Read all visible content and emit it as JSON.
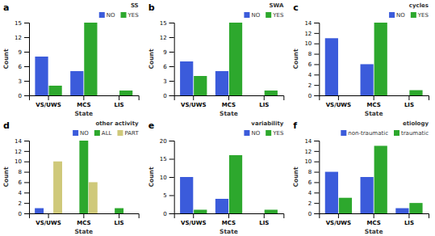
{
  "chart_data": [
    {
      "type": "bar",
      "title": "SS",
      "annotations": [
        "a"
      ],
      "xlabel": "State",
      "ylabel": "Count",
      "categories": [
        "VS/UWS",
        "MCS",
        "LIS"
      ],
      "series": [
        {
          "name": "NO",
          "color": "#3b5bdb",
          "values": [
            8,
            5,
            0
          ]
        },
        {
          "name": "YES",
          "color": "#2da82d",
          "values": [
            2,
            15,
            1
          ]
        }
      ],
      "ylim": [
        0,
        15
      ],
      "yticks": [
        0,
        3,
        6,
        9,
        12,
        15
      ],
      "grid": false,
      "legend": "top"
    },
    {
      "type": "bar",
      "title": "SWA",
      "annotations": [
        "b"
      ],
      "xlabel": "State",
      "ylabel": "Count",
      "categories": [
        "VS/UWS",
        "MCS",
        "LIS"
      ],
      "series": [
        {
          "name": "NO",
          "color": "#3b5bdb",
          "values": [
            7,
            5,
            0
          ]
        },
        {
          "name": "YES",
          "color": "#2da82d",
          "values": [
            4,
            15,
            1
          ]
        }
      ],
      "ylim": [
        0,
        15
      ],
      "yticks": [
        0,
        3,
        6,
        9,
        12,
        15
      ],
      "grid": false,
      "legend": "top"
    },
    {
      "type": "bar",
      "title": "cycles",
      "annotations": [
        "c"
      ],
      "xlabel": "State",
      "ylabel": "Count",
      "categories": [
        "VS/UWS",
        "MCS",
        "LIS"
      ],
      "series": [
        {
          "name": "NO",
          "color": "#3b5bdb",
          "values": [
            11,
            6,
            0
          ]
        },
        {
          "name": "YES",
          "color": "#2da82d",
          "values": [
            0,
            14,
            1
          ]
        }
      ],
      "ylim": [
        0,
        14
      ],
      "yticks": [
        0,
        2,
        4,
        6,
        8,
        10,
        12,
        14
      ],
      "grid": false,
      "legend": "top"
    },
    {
      "type": "bar",
      "title": "other activity",
      "annotations": [
        "d"
      ],
      "xlabel": "State",
      "ylabel": "Count",
      "categories": [
        "VS/UWS",
        "MCS",
        "LIS"
      ],
      "series": [
        {
          "name": "NO",
          "color": "#3b5bdb",
          "values": [
            1,
            0,
            0
          ]
        },
        {
          "name": "ALL",
          "color": "#2da82d",
          "values": [
            0,
            14,
            1
          ]
        },
        {
          "name": "PART",
          "color": "#cfc97a",
          "values": [
            10,
            6,
            0
          ]
        }
      ],
      "ylim": [
        0,
        14
      ],
      "yticks": [
        0,
        2,
        4,
        6,
        8,
        10,
        12,
        14
      ],
      "grid": false,
      "legend": "top"
    },
    {
      "type": "bar",
      "title": "variability",
      "annotations": [
        "e"
      ],
      "xlabel": "State",
      "ylabel": "Count",
      "categories": [
        "VS/UWS",
        "MCS",
        "LIS"
      ],
      "series": [
        {
          "name": "NO",
          "color": "#3b5bdb",
          "values": [
            10,
            4,
            0
          ]
        },
        {
          "name": "YES",
          "color": "#2da82d",
          "values": [
            1,
            16,
            1
          ]
        }
      ],
      "ylim": [
        0,
        20
      ],
      "yticks": [
        0,
        5,
        10,
        15,
        20
      ],
      "grid": false,
      "legend": "top"
    },
    {
      "type": "bar",
      "title": "etiology",
      "annotations": [
        "f"
      ],
      "xlabel": "State",
      "ylabel": "Count",
      "categories": [
        "VS/UWS",
        "MCS",
        "LIS"
      ],
      "series": [
        {
          "name": "non-traumatic",
          "color": "#3b5bdb",
          "values": [
            8,
            7,
            1
          ]
        },
        {
          "name": "traumatic",
          "color": "#2da82d",
          "values": [
            3,
            13,
            2
          ]
        }
      ],
      "ylim": [
        0,
        14
      ],
      "yticks": [
        0,
        2,
        4,
        6,
        8,
        10,
        12,
        14
      ],
      "grid": false,
      "legend": "top"
    }
  ]
}
